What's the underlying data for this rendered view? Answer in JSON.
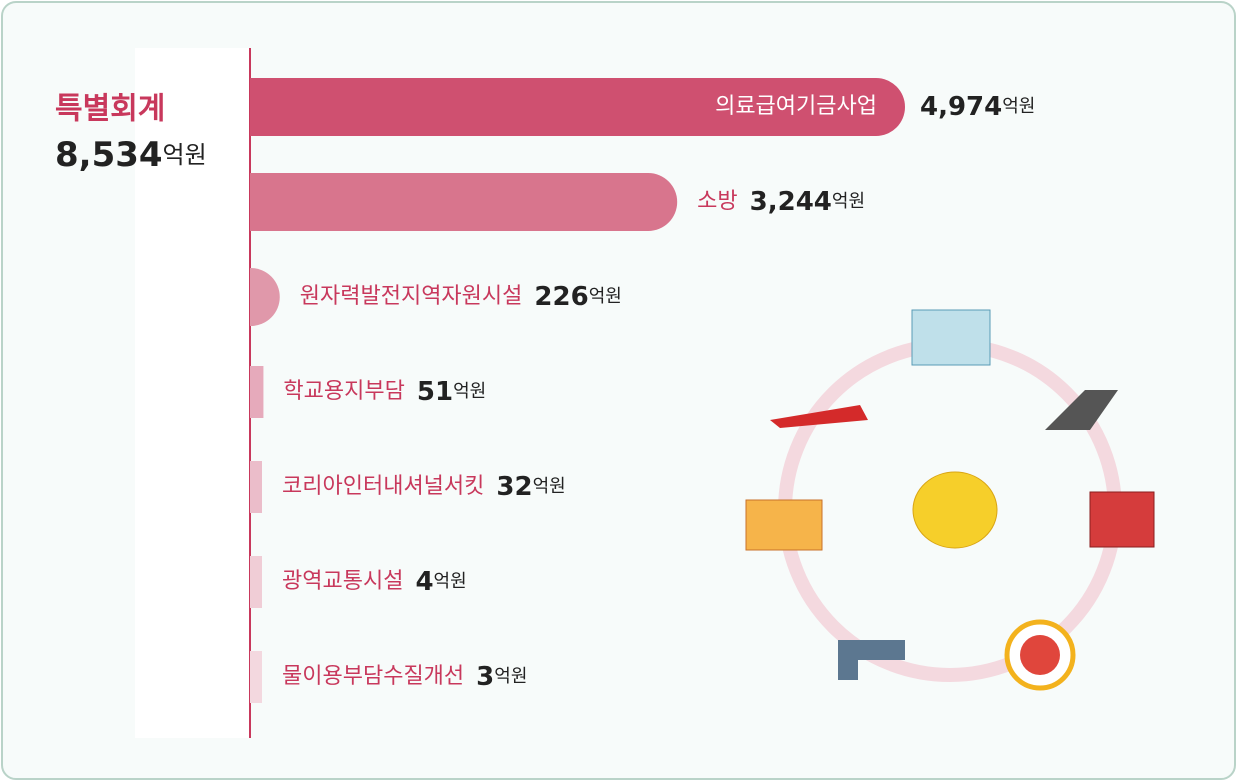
{
  "chart_data": {
    "type": "bar",
    "title": "특별회계",
    "total": "8,534",
    "unit": "억원",
    "categories": [
      "의료급여기금사업",
      "소방",
      "원자력발전지역자원시설",
      "학교용지부담",
      "코리아인터내셔널서킷",
      "광역교통시설",
      "물이용부담수질개선"
    ],
    "values": [
      4974,
      3244,
      226,
      51,
      32,
      4,
      3
    ],
    "value_labels": [
      "4,974",
      "3,244",
      "226",
      "51",
      "32",
      "4",
      "3"
    ],
    "colors": [
      "#cf5070",
      "#d8758d",
      "#e098aa",
      "#e6aabb",
      "#ebbdca",
      "#f0cdd6",
      "#f3d8df"
    ]
  }
}
